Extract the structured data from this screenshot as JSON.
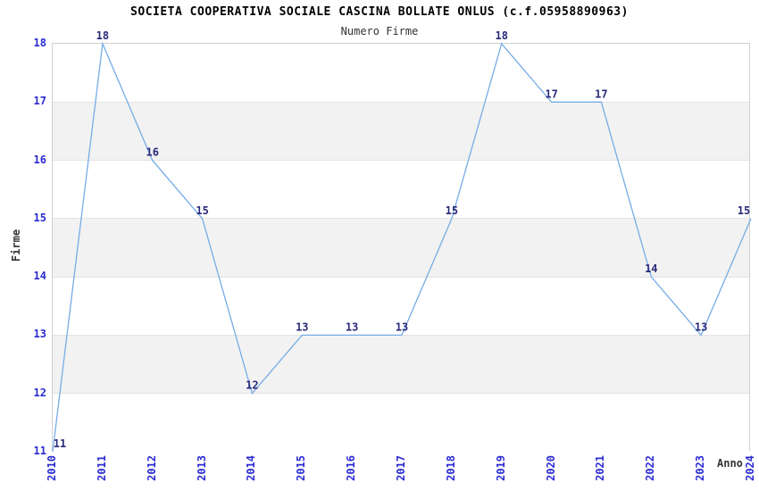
{
  "header": {
    "title": "SOCIETA COOPERATIVA SOCIALE CASCINA BOLLATE ONLUS (c.f.05958890963)",
    "subtitle": "Numero Firme"
  },
  "chart_data": {
    "type": "line",
    "title": "SOCIETA COOPERATIVA SOCIALE CASCINA BOLLATE ONLUS (c.f.05958890963)",
    "subtitle": "Numero Firme",
    "xlabel": "Anno",
    "ylabel": "Firme",
    "x": [
      2010,
      2011,
      2012,
      2013,
      2014,
      2015,
      2016,
      2017,
      2018,
      2019,
      2020,
      2021,
      2022,
      2023,
      2024
    ],
    "values": [
      11,
      18,
      16,
      15,
      12,
      13,
      13,
      13,
      15,
      18,
      17,
      17,
      14,
      13,
      15
    ],
    "ylim": [
      11,
      18
    ],
    "yticks": [
      11,
      12,
      13,
      14,
      15,
      16,
      17,
      18
    ],
    "data_labels": true,
    "legend": "none",
    "grid": "horizontal-bands",
    "colors": {
      "line": "#76ace6",
      "tick_label": "#2b2bd4",
      "data_label": "#29297a",
      "band_gray": "#f2f2f2",
      "band_white": "#ffffff",
      "gridline": "#e3e3e3",
      "plot_border": "#cfcfcf",
      "axis_title": "#333333",
      "title": "#000000"
    }
  }
}
